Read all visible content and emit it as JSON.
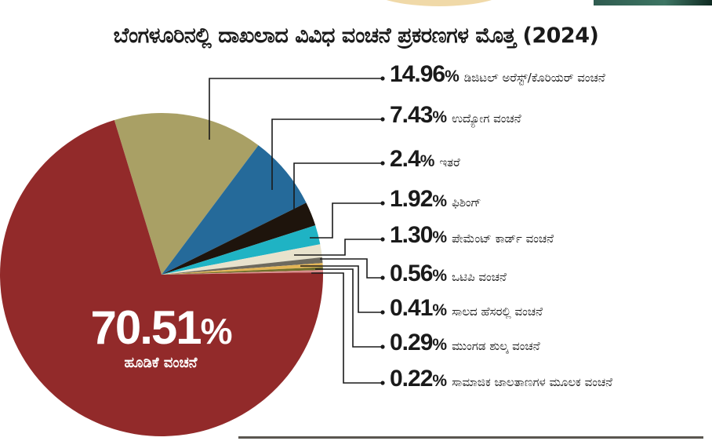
{
  "chart_data": {
    "type": "pie",
    "title": "ಬೆಂಗಳೂರಿನಲ್ಲಿ ದಾಖಲಾದ ವಿವಿಧ ವಂಚನೆ ಪ್ರಕರಣಗಳ ಮೊತ್ತ (2024)",
    "unit": "%",
    "slices": [
      {
        "label": "ಡಿಜಿಟಲ್ ಅರೆಸ್ಟ್/ಕೊರಿಯರ್ ವಂಚನೆ",
        "value": 14.96,
        "value_text": "14.96",
        "color": "#a9a065"
      },
      {
        "label": "ಉದ್ಯೋಗ ವಂಚನೆ",
        "value": 7.43,
        "value_text": "7.43",
        "color": "#256a9a"
      },
      {
        "label": "ಇತರೆ",
        "value": 2.4,
        "value_text": "2.4",
        "color": "#1e140c"
      },
      {
        "label": "ಫಿಶಿಂಗ್",
        "value": 1.92,
        "value_text": "1.92",
        "color": "#1fb3c4"
      },
      {
        "label": "ಪೇಮೆಂಟ್ ಕಾರ್ಡ್ ವಂಚನೆ",
        "value": 1.3,
        "value_text": "1.30",
        "color": "#e8e2cc"
      },
      {
        "label": "ಒಟಿಪಿ ವಂಚನೆ",
        "value": 0.56,
        "value_text": "0.56",
        "color": "#6e6a5e"
      },
      {
        "label": "ಸಾಲದ ಹೆಸರಲ್ಲಿ ವಂಚನೆ",
        "value": 0.41,
        "value_text": "0.41",
        "color": "#e3b555"
      },
      {
        "label": "ಮುಂಗಡ ಶುಲ್ಕ ವಂಚನೆ",
        "value": 0.29,
        "value_text": "0.29",
        "color": "#6f6f2a"
      },
      {
        "label": "ಸಾಮಾಜಿಕ ಜಾಲತಾಣಗಳ ಮೂಲಕ ವಂಚನೆ",
        "value": 0.22,
        "value_text": "0.22",
        "color": "#d98a8a"
      },
      {
        "label": "ಹೂಡಿಕೆ ವಂಚನೆ",
        "value": 70.51,
        "value_text": "70.51",
        "color": "#922a2a"
      }
    ],
    "legend": "right",
    "percent_sign": "%"
  }
}
